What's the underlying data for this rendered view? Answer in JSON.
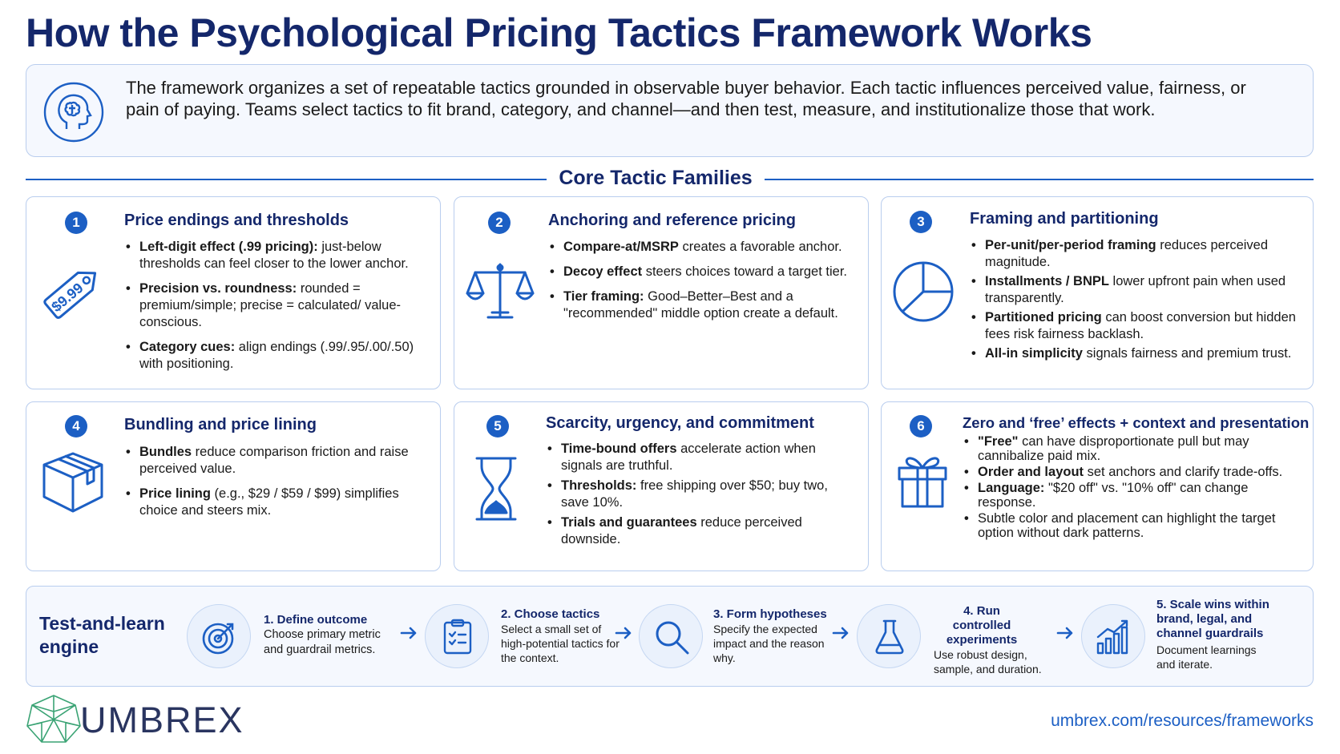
{
  "title": "How the Psychological Pricing Tactics Framework Works",
  "intro": {
    "icon": "brain-head-icon",
    "text": "The framework organizes a set of repeatable tactics grounded in observable buyer behavior. Each tactic influences perceived value, fairness, or pain of paying. Teams select tactics to fit brand, category, and channel—and then test, measure, and institutionalize those that work."
  },
  "section_title": "Core Tactic Families",
  "cards": [
    {
      "num": "1",
      "title": "Price endings and thresholds",
      "icon": "price-tag-icon",
      "icon_text": "$9.99",
      "bullets": [
        {
          "bold": "Left-digit effect (.99 pricing):",
          "text": " just-below thresholds can feel closer to the lower anchor."
        },
        {
          "bold": "Precision vs. roundness:",
          "text": " rounded = premium/simple; precise = calculated/ value-conscious."
        },
        {
          "bold": "Category cues:",
          "text": " align endings (.99/.95/.00/.50) with positioning."
        }
      ]
    },
    {
      "num": "2",
      "title": "Anchoring and reference pricing",
      "icon": "balance-scale-icon",
      "bullets": [
        {
          "bold": "Compare-at/MSRP",
          "text": " creates a favorable anchor."
        },
        {
          "bold": "Decoy effect",
          "text": " steers choices toward a target tier."
        },
        {
          "bold": "Tier framing:",
          "text": " Good–Better–Best and a \"recommended\" middle option create a default."
        }
      ]
    },
    {
      "num": "3",
      "title": "Framing and partitioning",
      "icon": "pie-chart-icon",
      "bullets": [
        {
          "bold": "Per-unit/per-period framing",
          "text": " reduces perceived magnitude."
        },
        {
          "bold": "Installments / BNPL",
          "text": " lower upfront pain when used transparently."
        },
        {
          "bold": "Partitioned pricing",
          "text": " can boost conversion but hidden fees risk fairness backlash."
        },
        {
          "bold": "All-in simplicity",
          "text": " signals fairness and premium trust."
        }
      ]
    },
    {
      "num": "4",
      "title": "Bundling and price lining",
      "icon": "box-icon",
      "bullets": [
        {
          "bold": "Bundles",
          "text": " reduce comparison friction and raise perceived value."
        },
        {
          "bold": "Price lining",
          "text": " (e.g., $29 / $59 / $99) simplifies choice and steers mix."
        }
      ]
    },
    {
      "num": "5",
      "title": "Scarcity, urgency, and commitment",
      "icon": "hourglass-icon",
      "bullets": [
        {
          "bold": "Time-bound offers",
          "text": " accelerate action when signals are truthful."
        },
        {
          "bold": "Thresholds:",
          "text": " free shipping over $50; buy two, save 10%."
        },
        {
          "bold": "Trials and guarantees",
          "text": " reduce perceived downside."
        }
      ]
    },
    {
      "num": "6",
      "title": "Zero and ‘free’ effects + context and presentation",
      "icon": "gift-icon",
      "bullets": [
        {
          "bold": "\"Free\"",
          "text": " can have disproportionate pull but may cannibalize paid mix."
        },
        {
          "bold": "Order and layout",
          "text": " set anchors and clarify trade-offs."
        },
        {
          "bold": "Language:",
          "text": " \"$20 off\" vs. \"10% off\" can change response."
        },
        {
          "bold": "",
          "text": "Subtle color and placement can highlight the target option without dark patterns."
        }
      ]
    }
  ],
  "engine": {
    "title": "Test-and-learn engine",
    "steps": [
      {
        "title": "1. Define outcome",
        "text": "Choose primary metric and guardrail metrics.",
        "icon": "target-icon"
      },
      {
        "title": "2. Choose tactics",
        "text": "Select a small set of high-potential tactics for the context.",
        "icon": "clipboard-checklist-icon"
      },
      {
        "title": "3. Form hypotheses",
        "text": "Specify the expected impact and the reason why.",
        "icon": "magnifier-icon"
      },
      {
        "title": "4. Run controlled experiments",
        "text": "Use robust design, sample, and duration.",
        "icon": "flask-icon"
      },
      {
        "title": "5. Scale wins within brand, legal, and channel guardrails",
        "text": "Document learnings and iterate.",
        "icon": "growth-chart-icon"
      }
    ]
  },
  "footer": {
    "logo_text": "UMBREX",
    "url": "umbrex.com/resources/frameworks"
  },
  "colors": {
    "navy": "#14276b",
    "accent": "#1c5fc4",
    "border": "#b9cdee",
    "panel_bg": "#f5f8fe"
  }
}
